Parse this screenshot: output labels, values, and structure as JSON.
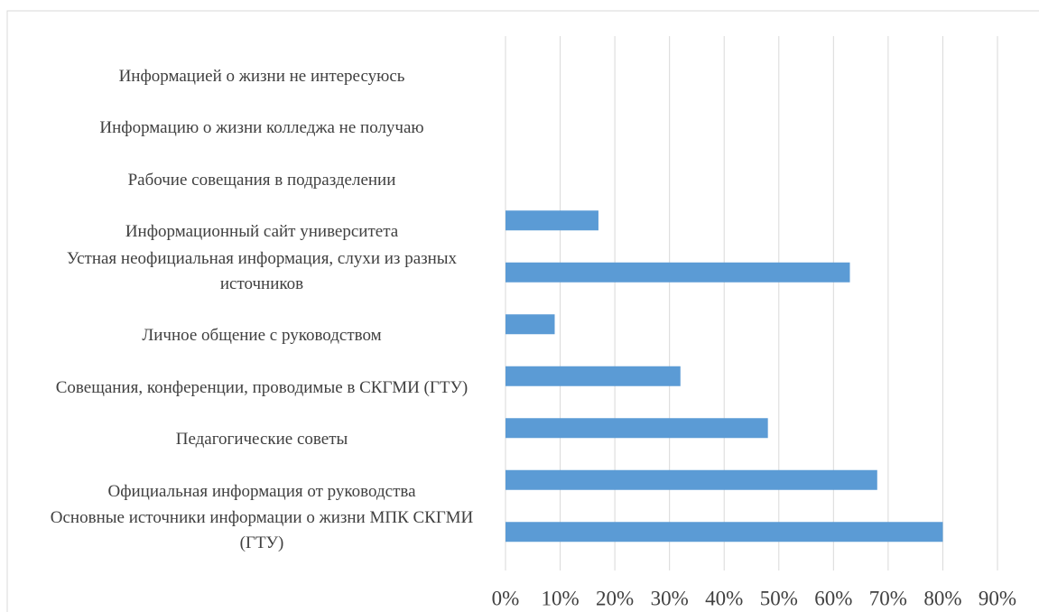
{
  "chart_data": {
    "type": "bar",
    "orientation": "horizontal",
    "categories": [
      "Информацией о жизни не интересуюсь",
      "Информацию о жизни колледжа не получаю",
      "Рабочие совещания в подразделении",
      "Информационный сайт университета",
      "Устная неофициальная информация, слухи из разных источников",
      "Личное общение с руководством",
      "Совещания, конференции, проводимые в СКГМИ (ГТУ)",
      "Педагогические советы",
      "Официальная информация от руководства",
      "Основные источники информации о жизни МПК СКГМИ (ГТУ)"
    ],
    "values": [
      0,
      0,
      0,
      17,
      63,
      9,
      32,
      48,
      68,
      80
    ],
    "color": "#5b9bd5",
    "xlim": [
      0,
      90
    ],
    "xticks": [
      {
        "value": 0,
        "label": "0%"
      },
      {
        "value": 10,
        "label": "10%"
      },
      {
        "value": 20,
        "label": "20%"
      },
      {
        "value": 30,
        "label": "30%"
      },
      {
        "value": 40,
        "label": "40%"
      },
      {
        "value": 50,
        "label": "50%"
      },
      {
        "value": 60,
        "label": "60%"
      },
      {
        "value": 70,
        "label": "70%"
      },
      {
        "value": 80,
        "label": "80%"
      },
      {
        "value": 90,
        "label": "90%"
      }
    ],
    "grid": true
  }
}
